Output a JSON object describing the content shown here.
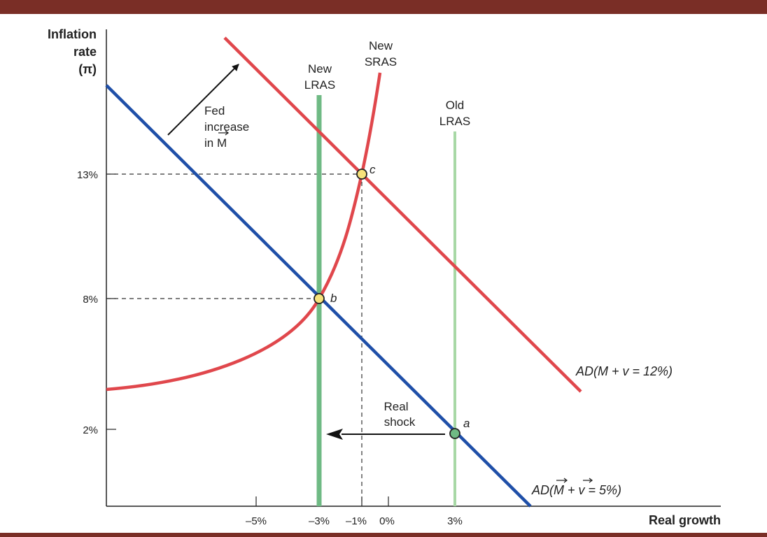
{
  "axes": {
    "y_title": [
      "Inflation",
      "rate",
      "(π)"
    ],
    "x_title": "Real growth",
    "y_ticks": [
      "13%",
      "8%",
      "2%"
    ],
    "x_ticks": [
      "–5%",
      "–3%",
      "–1%",
      "0%",
      "3%"
    ]
  },
  "curves": {
    "new_lras": [
      "New",
      "LRAS"
    ],
    "old_lras": [
      "Old",
      "LRAS"
    ],
    "new_sras": [
      "New",
      "SRAS"
    ],
    "ad_high": "AD(M + v = 12%)",
    "ad_low": "AD(M + v = 5%)"
  },
  "annotations": {
    "fed": [
      "Fed",
      "increase",
      "in M"
    ],
    "shock": [
      "Real",
      "shock"
    ]
  },
  "points": [
    {
      "label": "a",
      "x": 3,
      "y": 2
    },
    {
      "label": "b",
      "x": -3,
      "y": 8
    },
    {
      "label": "c",
      "x": -1,
      "y": 13
    }
  ],
  "colors": {
    "band": "#7a2e26",
    "ad_low": "#1f4fa8",
    "ad_high": "#e0474c",
    "sras": "#e0474c",
    "new_lras": "#6fba84",
    "old_lras": "#a8d8a6",
    "point_yellow": "#f7e27a",
    "point_green": "#6fba84"
  }
}
